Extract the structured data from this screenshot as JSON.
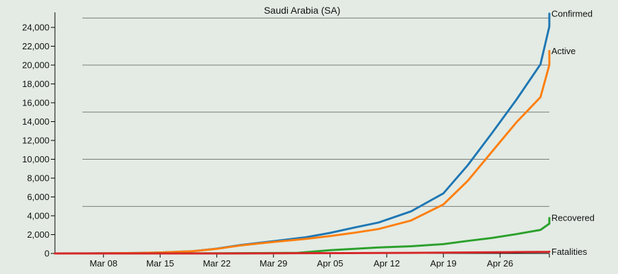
{
  "chart_data": {
    "type": "line",
    "title": "Saudi Arabia (SA)",
    "xlabel": "",
    "ylabel": "",
    "x_start": "Mar 02",
    "x_tick_labels": [
      "Mar 08",
      "Mar 15",
      "Mar 22",
      "Mar 29",
      "Apr 05",
      "Apr 12",
      "Apr 19",
      "Apr 26"
    ],
    "x_tick_days": [
      6,
      13,
      20,
      27,
      34,
      41,
      48,
      55
    ],
    "x_range_days": [
      0,
      61
    ],
    "y_ticks": [
      0,
      2000,
      4000,
      6000,
      8000,
      10000,
      12000,
      14000,
      16000,
      18000,
      20000,
      22000,
      24000
    ],
    "y_tick_labels": [
      "0",
      "2,000",
      "4,000",
      "6,000",
      "8,000",
      "10,000",
      "12,000",
      "14,000",
      "16,000",
      "18,000",
      "20,000",
      "22,000",
      "24,000"
    ],
    "ylim": [
      0,
      25500
    ],
    "grid_lines_y": [
      5000,
      10000,
      15000,
      20000,
      25000
    ],
    "series": [
      {
        "name": "Confirmed",
        "color": "#1f77b4",
        "points": [
          [
            0,
            1
          ],
          [
            6,
            11
          ],
          [
            10,
            45
          ],
          [
            13,
            103
          ],
          [
            17,
            238
          ],
          [
            20,
            511
          ],
          [
            23,
            900
          ],
          [
            27,
            1299
          ],
          [
            31,
            1720
          ],
          [
            34,
            2179
          ],
          [
            37,
            2752
          ],
          [
            40,
            3287
          ],
          [
            44,
            4462
          ],
          [
            48,
            6380
          ],
          [
            51,
            9362
          ],
          [
            54,
            12772
          ],
          [
            57,
            16299
          ],
          [
            60,
            20077
          ],
          [
            63,
            24097
          ],
          [
            64,
            25459
          ]
        ]
      },
      {
        "name": "Active",
        "color": "#ff7f0e",
        "points": [
          [
            0,
            1
          ],
          [
            6,
            11
          ],
          [
            10,
            45
          ],
          [
            13,
            100
          ],
          [
            17,
            230
          ],
          [
            20,
            490
          ],
          [
            23,
            860
          ],
          [
            27,
            1220
          ],
          [
            31,
            1550
          ],
          [
            34,
            1850
          ],
          [
            37,
            2200
          ],
          [
            40,
            2600
          ],
          [
            44,
            3500
          ],
          [
            48,
            5200
          ],
          [
            51,
            7700
          ],
          [
            54,
            10800
          ],
          [
            57,
            13900
          ],
          [
            60,
            16600
          ],
          [
            63,
            20000
          ],
          [
            64,
            21500
          ]
        ]
      },
      {
        "name": "Recovered",
        "color": "#2ca02c",
        "points": [
          [
            0,
            0
          ],
          [
            20,
            16
          ],
          [
            25,
            37
          ],
          [
            30,
            68
          ],
          [
            34,
            351
          ],
          [
            37,
            488
          ],
          [
            40,
            631
          ],
          [
            44,
            761
          ],
          [
            48,
            990
          ],
          [
            51,
            1329
          ],
          [
            54,
            1640
          ],
          [
            57,
            2050
          ],
          [
            60,
            2500
          ],
          [
            63,
            3163
          ],
          [
            64,
            3531
          ],
          [
            65,
            3765
          ]
        ]
      },
      {
        "name": "Fatalities",
        "color": "#d62728",
        "points": [
          [
            0,
            0
          ],
          [
            22,
            1
          ],
          [
            30,
            29
          ],
          [
            38,
            41
          ],
          [
            44,
            65
          ],
          [
            50,
            103
          ],
          [
            56,
            139
          ],
          [
            62,
            176
          ],
          [
            65,
            187
          ]
        ]
      }
    ]
  }
}
